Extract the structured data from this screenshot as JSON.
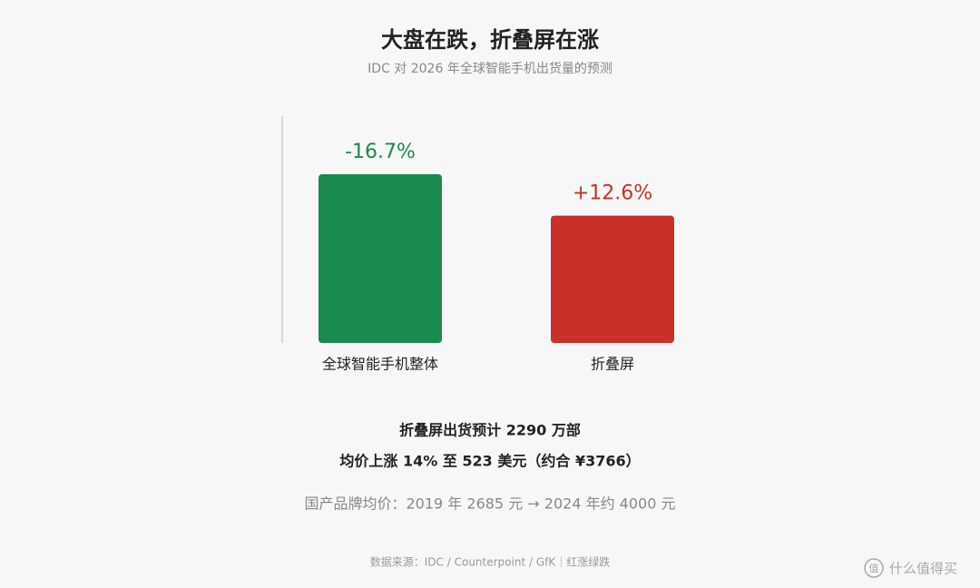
{
  "chart_data": {
    "type": "bar",
    "title": "大盘在跌，折叠屏在涨",
    "subtitle": "IDC 对 2026 年全球智能手机出货量的预测",
    "categories": [
      "全球智能手机整体",
      "折叠屏"
    ],
    "values": [
      -16.7,
      12.6
    ],
    "value_labels": [
      "-16.7%",
      "+12.6%"
    ],
    "colors": [
      "#1b8a4e",
      "#c8302a"
    ],
    "notes": [
      "折叠屏出货预计 2290 万部",
      "均价上涨 14% 至 523 美元（约合 ¥3766）",
      "国产品牌均价：2019 年 2685 元 → 2024 年约 4000 元"
    ],
    "source": "数据来源：IDC / Counterpoint / GfK｜红涨绿跌",
    "watermark": {
      "icon": "值",
      "text": "什么值得买"
    }
  }
}
